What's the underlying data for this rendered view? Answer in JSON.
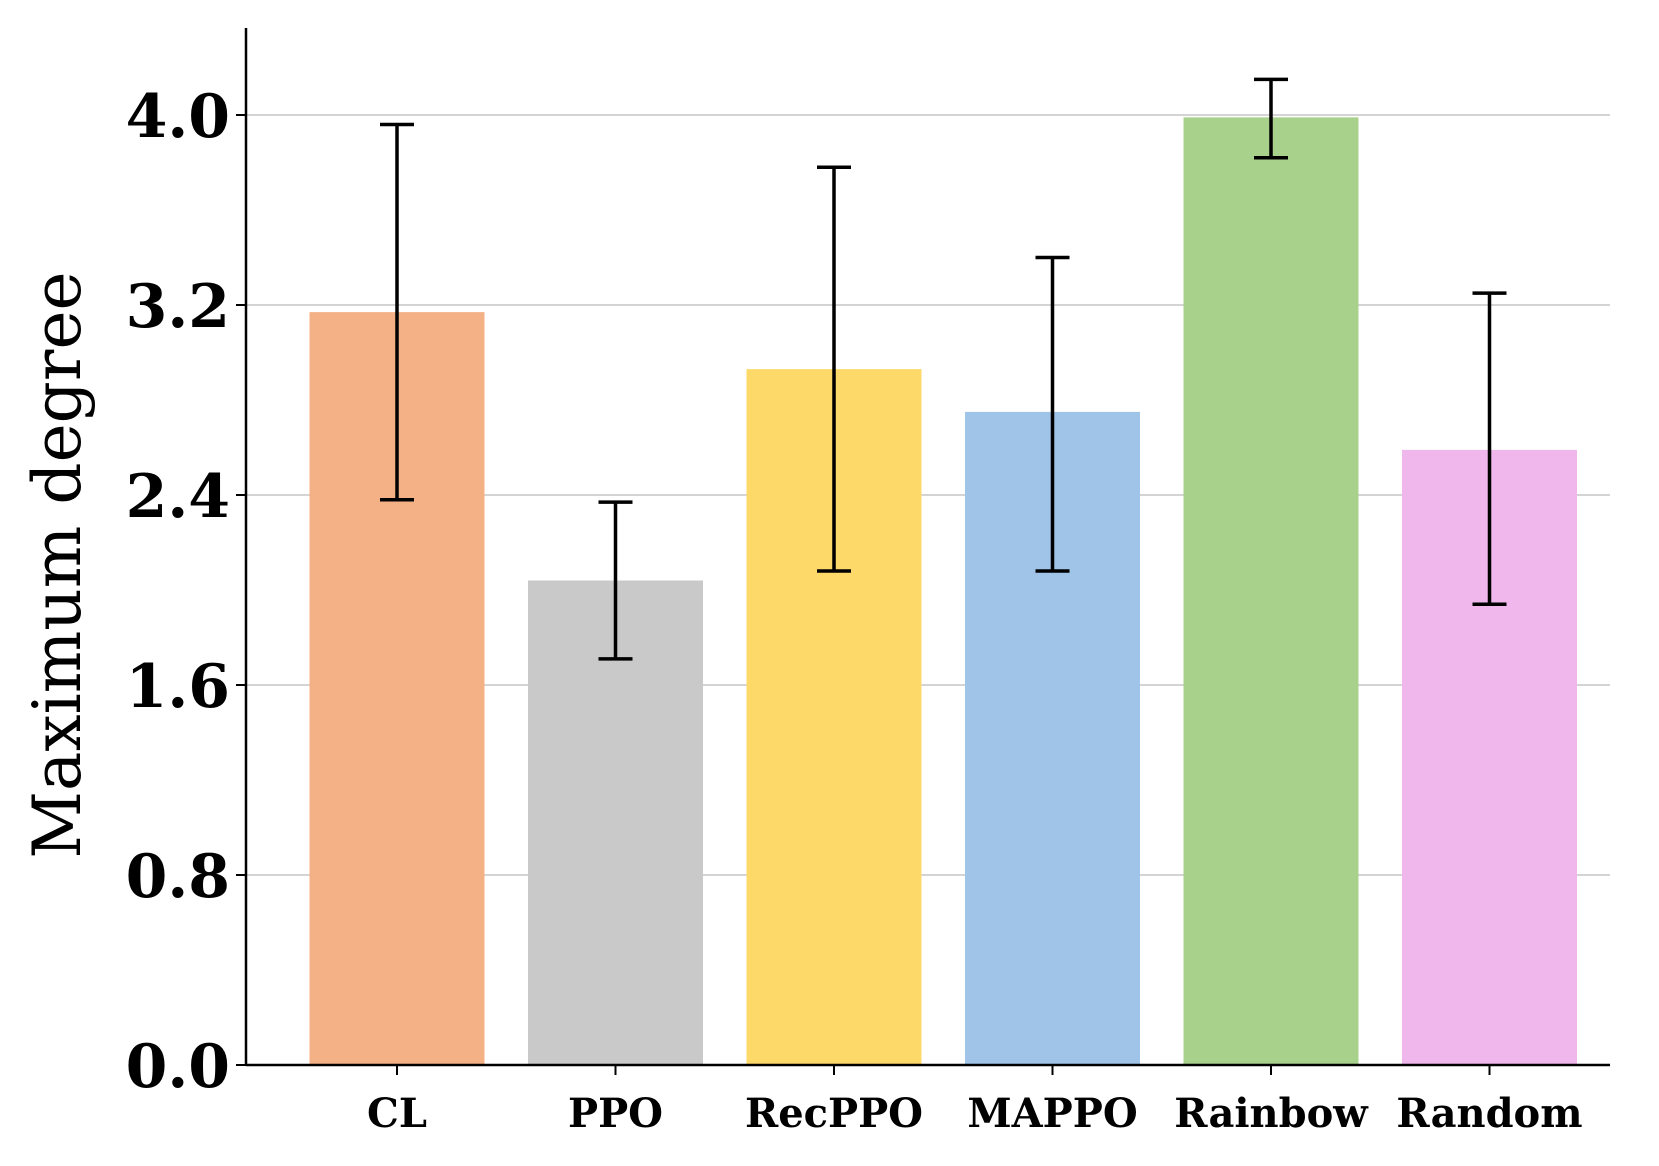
{
  "chart_data": {
    "type": "bar",
    "title": "",
    "xlabel": "",
    "ylabel": "Maximum degree",
    "ylim": [
      0,
      4.4
    ],
    "yticks": [
      0.0,
      0.8,
      1.6,
      2.4,
      3.2,
      4.0
    ],
    "ytick_labels": [
      "0.0",
      "0.8",
      "1.6",
      "2.4",
      "3.2",
      "4.0"
    ],
    "grid": "horizontal",
    "categories": [
      "CL",
      "PPO",
      "RecPPO",
      "MAPPO",
      "Rainbow",
      "Random"
    ],
    "values": [
      3.17,
      2.04,
      2.93,
      2.75,
      3.99,
      2.59
    ],
    "error_low": [
      2.38,
      1.71,
      2.08,
      2.08,
      3.82,
      1.94
    ],
    "error_high": [
      3.96,
      2.37,
      3.78,
      3.4,
      4.15,
      3.25
    ],
    "colors": [
      "#F4B185",
      "#C9C9C9",
      "#FDD96A",
      "#9FC4E7",
      "#A8D18C",
      "#EFB7EC"
    ]
  }
}
